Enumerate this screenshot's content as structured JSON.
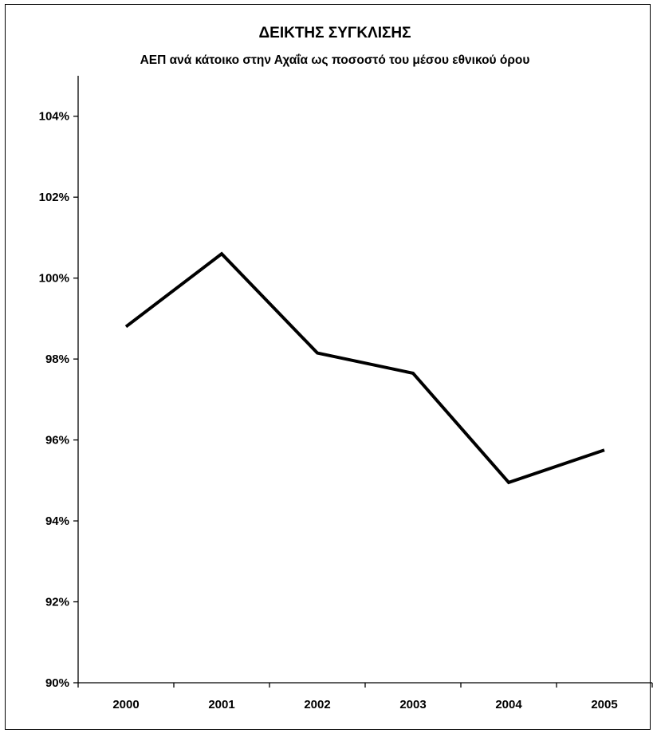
{
  "chart_data": {
    "type": "line",
    "title": "ΔΕΙΚΤΗΣ ΣΥΓΚΛΙΣΗΣ",
    "subtitle": "ΑΕΠ ανά κάτοικο στην Αχαΐα ως ποσοστό του μέσου εθνικού όρου",
    "categories": [
      "2000",
      "2001",
      "2002",
      "2003",
      "2004",
      "2005"
    ],
    "series": [
      {
        "values": [
          98.8,
          100.6,
          98.15,
          97.65,
          94.95,
          95.75
        ]
      }
    ],
    "ylim": [
      90,
      105
    ],
    "yticks": [
      90,
      92,
      94,
      96,
      98,
      100,
      102,
      104
    ],
    "ytick_labels": [
      "90%",
      "92%",
      "94%",
      "96%",
      "98%",
      "100%",
      "102%",
      "104%"
    ],
    "grid": false,
    "legend": "none",
    "line_color": "#000000"
  }
}
